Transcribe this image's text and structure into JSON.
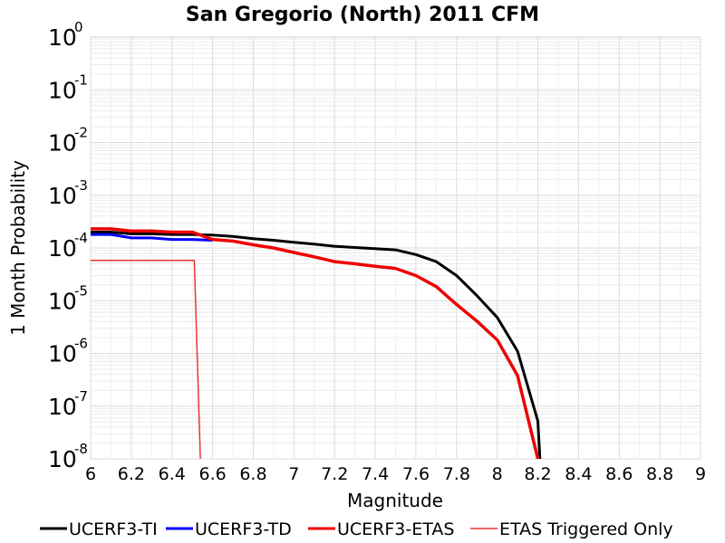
{
  "chart_data": {
    "type": "line",
    "title": "San Gregorio (North) 2011 CFM",
    "xlabel": "Magnitude",
    "ylabel": "1 Month Probability",
    "xlim": [
      6,
      9
    ],
    "ylim": [
      1e-08,
      1
    ],
    "yscale": "log",
    "grid": true,
    "legend_position": "bottom",
    "x_ticks": [
      "6",
      "6.2",
      "6.4",
      "6.6",
      "6.8",
      "7",
      "7.2",
      "7.4",
      "7.6",
      "7.8",
      "8",
      "8.2",
      "8.4",
      "8.6",
      "8.8",
      "9"
    ],
    "y_ticks": [
      {
        "base": "10",
        "exp": "0",
        "value": 1
      },
      {
        "base": "10",
        "exp": "-1",
        "value": 0.1
      },
      {
        "base": "10",
        "exp": "-2",
        "value": 0.01
      },
      {
        "base": "10",
        "exp": "-3",
        "value": 0.001
      },
      {
        "base": "10",
        "exp": "-4",
        "value": 0.0001
      },
      {
        "base": "10",
        "exp": "-5",
        "value": 1e-05
      },
      {
        "base": "10",
        "exp": "-6",
        "value": 1e-06
      },
      {
        "base": "10",
        "exp": "-7",
        "value": 1e-07
      },
      {
        "base": "10",
        "exp": "-8",
        "value": 1e-08
      }
    ],
    "series": [
      {
        "name": "UCERF3-TI",
        "color": "#000000",
        "width": 3,
        "x": [
          6.0,
          6.1,
          6.2,
          6.3,
          6.4,
          6.5,
          6.6,
          6.7,
          6.8,
          6.9,
          7.0,
          7.1,
          7.2,
          7.3,
          7.4,
          7.5,
          7.6,
          7.7,
          7.8,
          7.9,
          8.0,
          8.1,
          8.2,
          8.21
        ],
        "y": [
          0.0002,
          0.0002,
          0.000185,
          0.000185,
          0.00018,
          0.00018,
          0.000175,
          0.000165,
          0.00015,
          0.00014,
          0.000128,
          0.000118,
          0.000108,
          0.000102,
          9.7e-05,
          9.2e-05,
          7.5e-05,
          5.5e-05,
          3e-05,
          1.25e-05,
          4.8e-06,
          1.1e-06,
          5.2e-08,
          1e-08
        ]
      },
      {
        "name": "UCERF3-TD",
        "color": "#0000ff",
        "width": 3,
        "x": [
          6.0,
          6.1,
          6.2,
          6.3,
          6.4,
          6.5,
          6.6
        ],
        "y": [
          0.00018,
          0.00018,
          0.000155,
          0.000155,
          0.000145,
          0.000145,
          0.00014
        ]
      },
      {
        "name": "UCERF3-ETAS",
        "color": "#ee0000",
        "width": 3.5,
        "x": [
          6.0,
          6.1,
          6.2,
          6.3,
          6.4,
          6.5,
          6.6,
          6.7,
          6.8,
          6.9,
          7.0,
          7.1,
          7.2,
          7.3,
          7.4,
          7.5,
          7.6,
          7.7,
          7.8,
          7.9,
          8.0,
          8.1,
          8.2
        ],
        "y": [
          0.00023,
          0.00023,
          0.00021,
          0.00021,
          0.0002,
          0.0002,
          0.000145,
          0.000135,
          0.000115,
          0.0001,
          8.2e-05,
          6.8e-05,
          5.5e-05,
          5e-05,
          4.5e-05,
          4.1e-05,
          3e-05,
          1.85e-05,
          8.5e-06,
          4.1e-06,
          1.8e-06,
          3.8e-07,
          1e-08
        ]
      },
      {
        "name": "ETAS Triggered Only",
        "color": "#ee3333",
        "width": 1.5,
        "x": [
          6.0,
          6.1,
          6.2,
          6.3,
          6.4,
          6.5,
          6.51,
          6.54
        ],
        "y": [
          5.8e-05,
          5.8e-05,
          5.8e-05,
          5.8e-05,
          5.8e-05,
          5.8e-05,
          5.8e-05,
          1e-08
        ]
      }
    ]
  }
}
